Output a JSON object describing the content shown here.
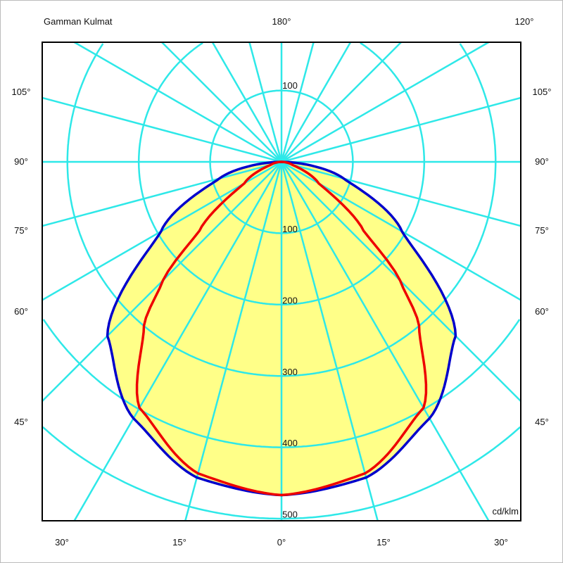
{
  "chart_data": {
    "type": "polar",
    "title": "Gamman Kulmat",
    "unit_label": "cd/klm",
    "top_labels": {
      "center": "180°",
      "right": "120°"
    },
    "side_angle_labels": [
      "105°",
      "90°",
      "75°",
      "60°",
      "45°"
    ],
    "bottom_angle_labels": [
      "30°",
      "15°",
      "0°",
      "15°",
      "30°"
    ],
    "radial_tick_labels_up": [
      "100"
    ],
    "radial_tick_labels_down": [
      "100",
      "200",
      "300",
      "400",
      "500"
    ],
    "radial_range": [
      0,
      500
    ],
    "radial_grid_step": 100,
    "angular_grid_step_deg": 15,
    "grid": true,
    "colors": {
      "grid": "#2ee8e8",
      "fill": "#ffff88",
      "series_1": "#0000cc",
      "series_2": "#ee0000",
      "frame": "#000000"
    },
    "series": [
      {
        "gamma_deg": [
          0,
          15,
          30,
          45,
          60,
          75,
          90
        ],
        "values": [
          467,
          458,
          415,
          345,
          195,
          90,
          0
        ]
      },
      {
        "gamma_deg": [
          0,
          15,
          30,
          40,
          45,
          50,
          60,
          75,
          90
        ],
        "values": [
          467,
          452,
          398,
          300,
          235,
          150,
          60,
          15,
          0
        ]
      }
    ]
  }
}
